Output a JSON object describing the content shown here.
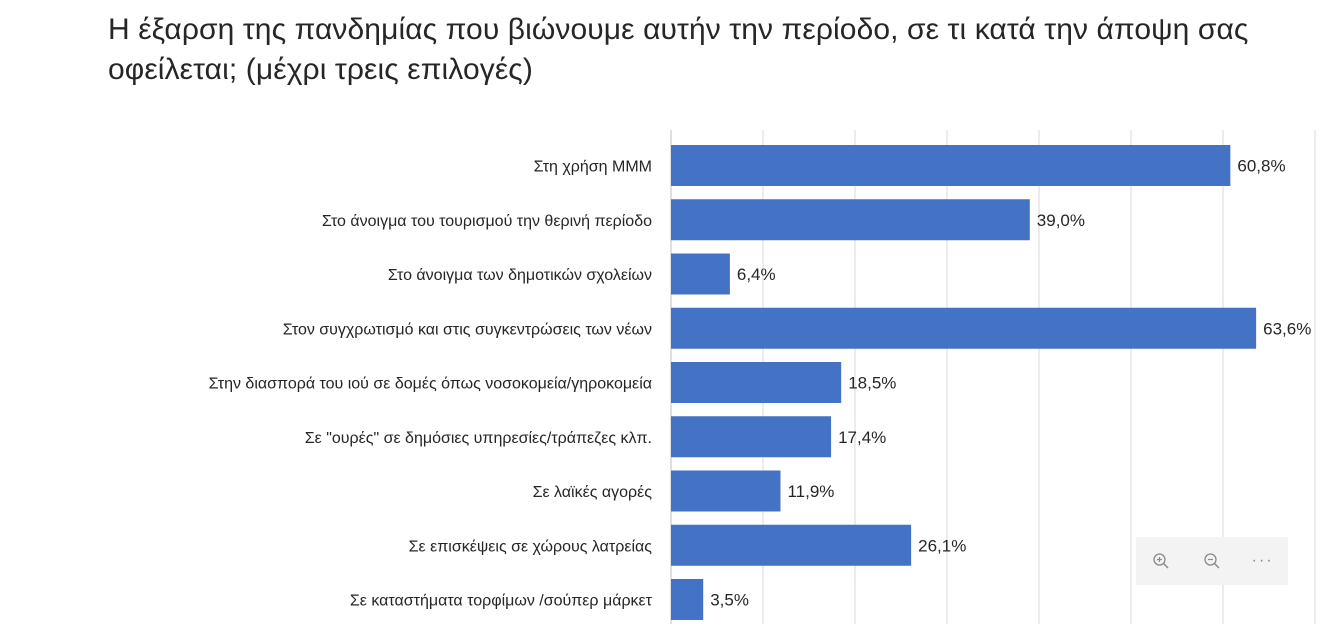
{
  "chart_data": {
    "type": "bar",
    "orientation": "horizontal",
    "title": "Η έξαρση της πανδημίας που βιώνουμε αυτήν την περίοδο, σε τι κατά την άποψη σας οφείλεται; (μέχρι τρεις επιλογές)",
    "categories": [
      "Στη χρήση ΜΜΜ",
      "Στο άνοιγμα του τουρισμού την θερινή περίοδο",
      "Στο άνοιγμα των δημοτικών σχολείων",
      "Στον συγχρωτισμό και στις συγκεντρώσεις των νέων",
      "Στην διασπορά του ιού σε δομές όπως νοσοκομεία/γηροκομεία",
      "Σε \"ουρές\" σε δημόσιες υπηρεσίες/τράπεζες κλπ.",
      "Σε λαϊκές αγορές",
      "Σε επισκέψεις σε χώρους λατρείας",
      "Σε καταστήματα τορφίμων /σούπερ μάρκετ"
    ],
    "values": [
      60.8,
      39.0,
      6.4,
      63.6,
      18.5,
      17.4,
      11.9,
      26.1,
      3.5
    ],
    "value_labels": [
      "60,8%",
      "39,0%",
      "6,4%",
      "63,6%",
      "18,5%",
      "17,4%",
      "11,9%",
      "26,1%",
      "3,5%"
    ],
    "xlim": [
      0,
      70
    ],
    "gridlines": true,
    "bar_color": "#4472c4",
    "xlabel": "",
    "ylabel": ""
  },
  "toolbar": {
    "zoom_in_icon": "zoom-in-icon",
    "zoom_out_icon": "zoom-out-icon",
    "more_label": "···"
  }
}
